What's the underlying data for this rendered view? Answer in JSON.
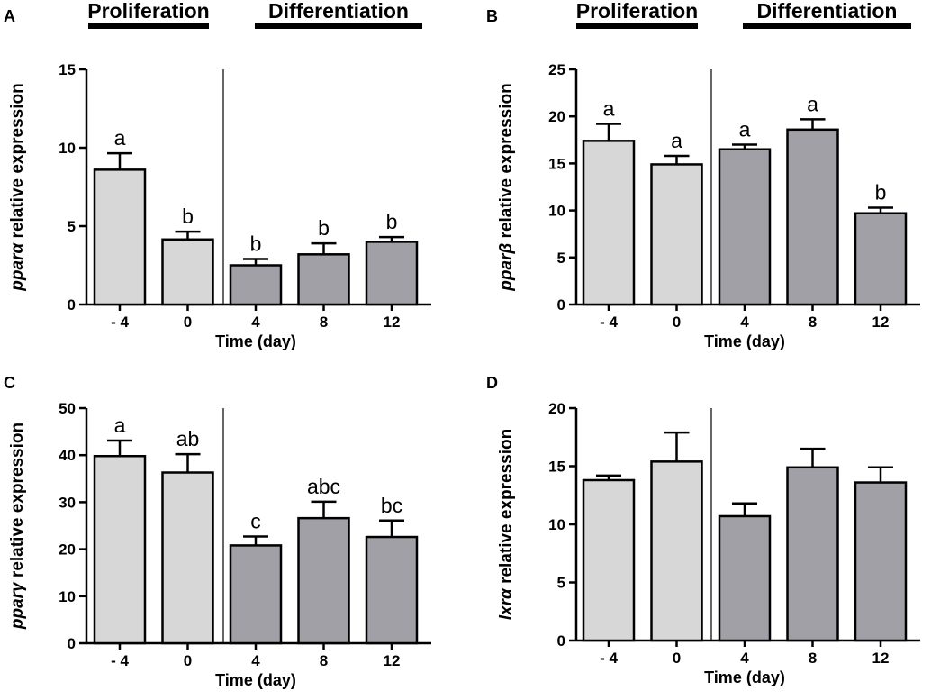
{
  "figure": {
    "colors": {
      "proliferation_bar": "#d7d7d7",
      "differentiation_bar": "#a0a0a6",
      "stroke": "#000000"
    },
    "phases": {
      "proliferation": "Proliferation",
      "differentiation": "Differentiation"
    }
  },
  "chart_data": [
    {
      "panel": "A",
      "type": "bar",
      "categories": [
        "- 4",
        "0",
        "4",
        "8",
        "12"
      ],
      "values": [
        8.6,
        4.15,
        2.5,
        3.2,
        4.0
      ],
      "errors": [
        1.05,
        0.5,
        0.4,
        0.7,
        0.3
      ],
      "significance": [
        "a",
        "b",
        "b",
        "b",
        "b"
      ],
      "groups": [
        "proliferation",
        "proliferation",
        "differentiation",
        "differentiation",
        "differentiation"
      ],
      "xlabel": "Time (day)",
      "ylabel_gene": "pparα",
      "ylabel_rest": " relative expression",
      "ylim": [
        0,
        15
      ],
      "yticks": [
        0,
        5,
        10,
        15
      ]
    },
    {
      "panel": "B",
      "type": "bar",
      "categories": [
        "- 4",
        "0",
        "4",
        "8",
        "12"
      ],
      "values": [
        17.4,
        14.9,
        16.5,
        18.6,
        9.7
      ],
      "errors": [
        1.8,
        0.9,
        0.5,
        1.1,
        0.6
      ],
      "significance": [
        "a",
        "a",
        "a",
        "a",
        "b"
      ],
      "groups": [
        "proliferation",
        "proliferation",
        "differentiation",
        "differentiation",
        "differentiation"
      ],
      "xlabel": "Time (day)",
      "ylabel_gene": "pparβ",
      "ylabel_rest": " relative expression",
      "ylim": [
        0,
        25
      ],
      "yticks": [
        0,
        5,
        10,
        15,
        20,
        25
      ]
    },
    {
      "panel": "C",
      "type": "bar",
      "categories": [
        "- 4",
        "0",
        "4",
        "8",
        "12"
      ],
      "values": [
        39.8,
        36.3,
        20.8,
        26.6,
        22.6
      ],
      "errors": [
        3.3,
        3.9,
        1.9,
        3.5,
        3.5
      ],
      "significance": [
        "a",
        "ab",
        "c",
        "abc",
        "bc"
      ],
      "groups": [
        "proliferation",
        "proliferation",
        "differentiation",
        "differentiation",
        "differentiation"
      ],
      "xlabel": "Time (day)",
      "ylabel_gene": "pparγ",
      "ylabel_rest": " relative expression",
      "ylim": [
        0,
        50
      ],
      "yticks": [
        0,
        10,
        20,
        30,
        40,
        50
      ]
    },
    {
      "panel": "D",
      "type": "bar",
      "categories": [
        "- 4",
        "0",
        "4",
        "8",
        "12"
      ],
      "values": [
        13.8,
        15.4,
        10.7,
        14.9,
        13.6
      ],
      "errors": [
        0.4,
        2.5,
        1.1,
        1.6,
        1.3
      ],
      "significance": [
        "",
        "",
        "",
        "",
        ""
      ],
      "groups": [
        "proliferation",
        "proliferation",
        "differentiation",
        "differentiation",
        "differentiation"
      ],
      "xlabel": "Time (day)",
      "ylabel_gene": "lxrα",
      "ylabel_rest": " relative expression",
      "ylim": [
        0,
        20
      ],
      "yticks": [
        0,
        5,
        10,
        15,
        20
      ]
    }
  ]
}
